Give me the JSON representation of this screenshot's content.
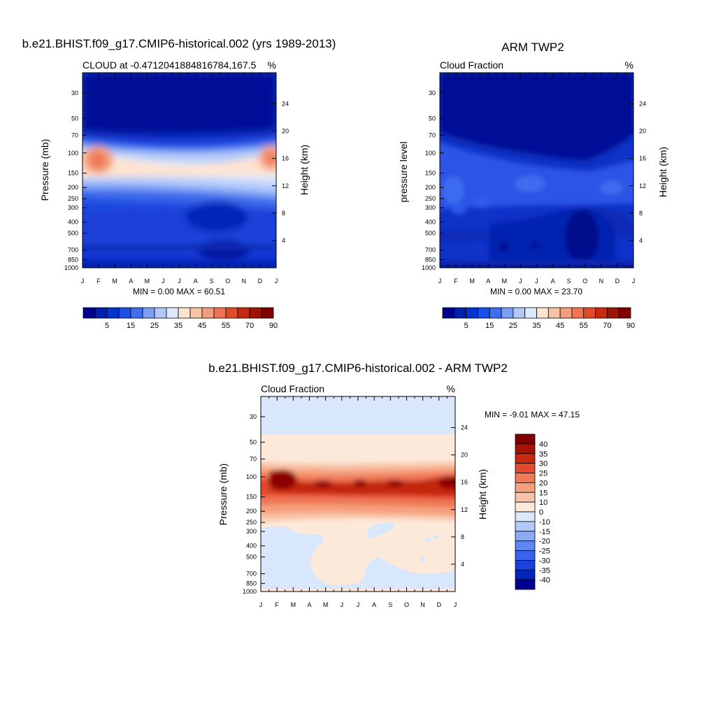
{
  "panels": [
    {
      "title": "b.e21.BHIST.f09_g17.CMIP6-historical.002 (yrs 1989-2013)",
      "left_label": "CLOUD at -0.4712041884816784,167.5",
      "right_label": "%",
      "ylabel": "Pressure (mb)",
      "y2label": "Height (km)",
      "minmax": "MIN =   0.00 MAX =  60.51"
    },
    {
      "title": "ARM TWP2",
      "left_label": "Cloud Fraction",
      "right_label": "%",
      "ylabel": "pressure level",
      "y2label": "Height (km)",
      "minmax": "MIN =   0.00 MAX =  23.70"
    },
    {
      "title": "b.e21.BHIST.f09_g17.CMIP6-historical.002 - ARM TWP2",
      "left_label": "Cloud Fraction",
      "right_label": "%",
      "ylabel": "Pressure (mb)",
      "y2label": "Height (km)",
      "minmax": "MIN =  -9.01 MAX =  47.15"
    }
  ],
  "chart_data": [
    {
      "type": "heatmap",
      "title": "b.e21.BHIST.f09_g17.CMIP6-historical.002 (yrs 1989-2013)",
      "x_ticks": [
        "J",
        "F",
        "M",
        "A",
        "M",
        "J",
        "J",
        "A",
        "S",
        "O",
        "N",
        "D",
        "J"
      ],
      "y_ticks": [
        30,
        50,
        70,
        100,
        150,
        200,
        250,
        300,
        400,
        500,
        700,
        850,
        1000
      ],
      "y2_ticks": [
        24,
        20,
        16,
        12,
        8,
        4
      ],
      "ylim": [
        1000,
        20
      ],
      "y_scale": "log",
      "value_range": [
        0.0,
        60.51
      ],
      "colorbar_labels": [
        "5",
        "15",
        "25",
        "35",
        "45",
        "55",
        "70",
        "90"
      ],
      "colorbar_colors": [
        "#000090",
        "#0020b0",
        "#0035d0",
        "#1b4ee8",
        "#3f6ef0",
        "#7a9ef2",
        "#b2c8f8",
        "#dce8fc",
        "#fde4d2",
        "#f7c4a8",
        "#f49d7c",
        "#ef7454",
        "#e24a2c",
        "#c82810",
        "#a01406",
        "#800000"
      ],
      "colorbar_placement": "bottom"
    },
    {
      "type": "heatmap",
      "title": "ARM TWP2",
      "x_ticks": [
        "J",
        "F",
        "M",
        "A",
        "M",
        "J",
        "J",
        "A",
        "S",
        "O",
        "N",
        "D",
        "J"
      ],
      "y_ticks": [
        30,
        50,
        70,
        100,
        150,
        200,
        250,
        300,
        400,
        500,
        700,
        850,
        1000
      ],
      "y2_ticks": [
        24,
        20,
        16,
        12,
        8,
        4
      ],
      "ylim": [
        1000,
        20
      ],
      "y_scale": "log",
      "value_range": [
        0.0,
        23.7
      ],
      "colorbar_labels": [
        "5",
        "15",
        "25",
        "35",
        "45",
        "55",
        "70",
        "90"
      ],
      "colorbar_colors": [
        "#000090",
        "#0020b0",
        "#0035d0",
        "#1b4ee8",
        "#3f6ef0",
        "#7a9ef2",
        "#b2c8f8",
        "#dce8fc",
        "#fde4d2",
        "#f7c4a8",
        "#f49d7c",
        "#ef7454",
        "#e24a2c",
        "#c82810",
        "#a01406",
        "#800000"
      ],
      "colorbar_placement": "bottom"
    },
    {
      "type": "heatmap",
      "title": "b.e21.BHIST.f09_g17.CMIP6-historical.002 - ARM TWP2",
      "x_ticks": [
        "J",
        "F",
        "M",
        "A",
        "M",
        "J",
        "J",
        "A",
        "S",
        "O",
        "N",
        "D",
        "J"
      ],
      "y_ticks": [
        30,
        50,
        70,
        100,
        150,
        200,
        250,
        300,
        400,
        500,
        700,
        850,
        1000
      ],
      "y2_ticks": [
        24,
        20,
        16,
        12,
        8,
        4
      ],
      "ylim": [
        1000,
        20
      ],
      "y_scale": "log",
      "value_range": [
        -9.01,
        47.15
      ],
      "colorbar_labels": [
        "40",
        "35",
        "30",
        "25",
        "20",
        "15",
        "10",
        "0",
        "-10",
        "-15",
        "-20",
        "-25",
        "-30",
        "-35",
        "-40"
      ],
      "colorbar_colors": [
        "#800000",
        "#a81204",
        "#c82810",
        "#e24a2c",
        "#f07a58",
        "#f5a07c",
        "#f8c4a8",
        "#fde9da",
        "#dbe9fb",
        "#b2c8f8",
        "#8aaaf2",
        "#5f86ee",
        "#3a62ea",
        "#1a42d8",
        "#0025b8",
        "#000090"
      ],
      "colorbar_placement": "right"
    }
  ]
}
